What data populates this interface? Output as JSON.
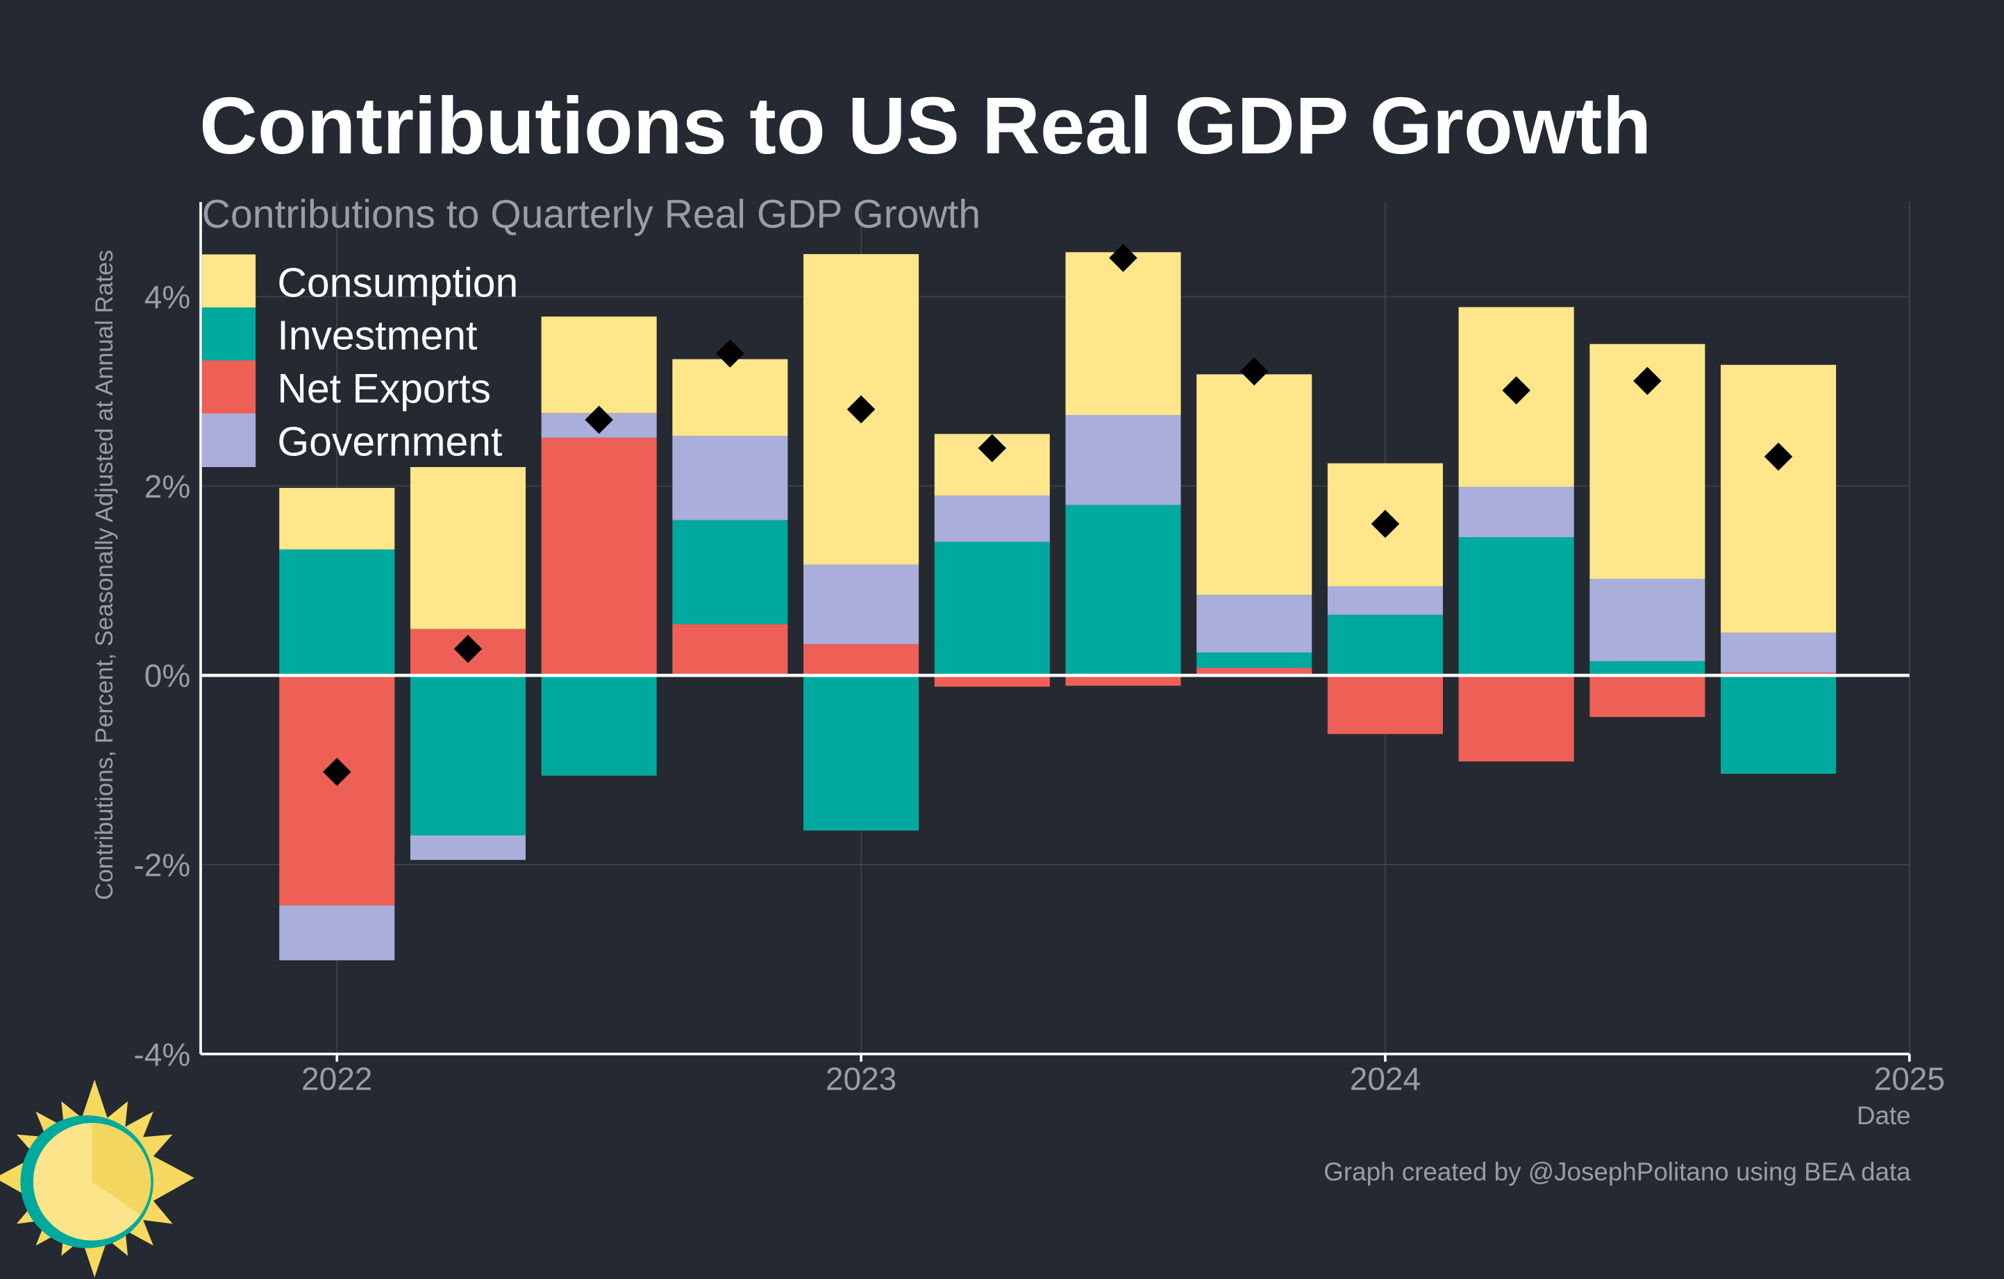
{
  "chart_data": {
    "type": "stacked-bar",
    "title": "Contributions to US Real GDP Growth",
    "subtitle": "Contributions to Quarterly Real GDP Growth",
    "y_label": "Contributions, Percent, Seasonally Adjusted at Annual Rates",
    "x_label": "Date",
    "credit": "Graph created by @JosephPolitano using BEA data",
    "x": [
      2022,
      2022.25,
      2022.5,
      2022.75,
      2023,
      2023.25,
      2023.5,
      2023.75,
      2024,
      2024.25,
      2024.5,
      2024.75
    ],
    "xlim": [
      2021.74,
      2025
    ],
    "xticks": [
      2022,
      2023,
      2024,
      2025
    ],
    "ylim": [
      -4,
      5
    ],
    "yticks": [
      {
        "value": -4,
        "label": "-4%"
      },
      {
        "value": -2,
        "label": "-2%"
      },
      {
        "value": 0,
        "label": "0%"
      },
      {
        "value": 2,
        "label": "2%"
      },
      {
        "value": 4,
        "label": "4%"
      }
    ],
    "grid": true,
    "legend": "upper left",
    "series": [
      {
        "name": "Consumption",
        "color": "#ffe68a",
        "values": [
          0.65,
          1.71,
          1.02,
          0.81,
          3.28,
          0.65,
          1.72,
          2.33,
          1.3,
          1.9,
          2.48,
          2.83
        ]
      },
      {
        "name": "Investment",
        "color": "#00a99d",
        "values": [
          1.33,
          -1.69,
          -1.06,
          1.1,
          -1.64,
          1.41,
          1.8,
          0.16,
          0.64,
          1.46,
          0.15,
          -1.04
        ]
      },
      {
        "name": "Net Exports",
        "color": "#ee6055",
        "values": [
          -2.43,
          0.49,
          2.51,
          0.54,
          0.33,
          -0.12,
          -0.11,
          0.08,
          -0.62,
          -0.91,
          -0.44,
          0.03
        ]
      },
      {
        "name": "Government",
        "color": "#aaaedb",
        "values": [
          -0.58,
          -0.26,
          0.26,
          0.89,
          0.84,
          0.49,
          0.95,
          0.61,
          0.3,
          0.53,
          0.87,
          0.42
        ]
      }
    ],
    "totals": {
      "color": "#000000",
      "values": [
        -1.02,
        0.28,
        2.7,
        3.4,
        2.81,
        2.4,
        4.41,
        3.21,
        1.6,
        3.01,
        3.11,
        2.31
      ]
    }
  }
}
